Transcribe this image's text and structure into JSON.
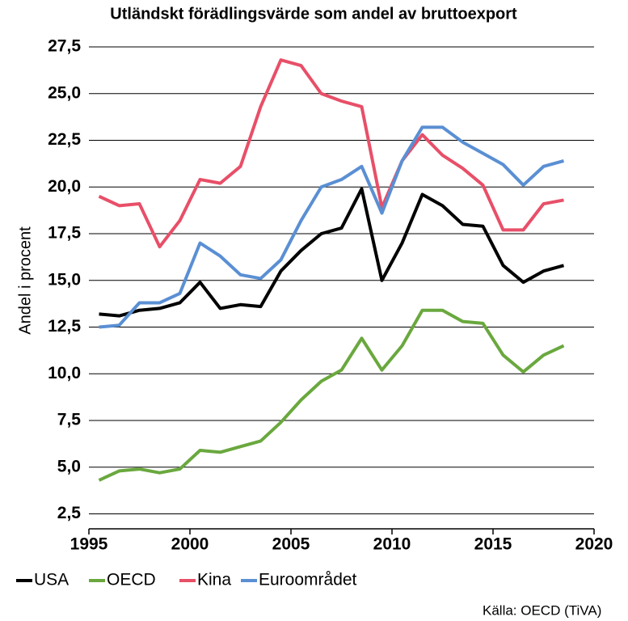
{
  "chart_data": {
    "type": "line",
    "title": "Utländskt förädlingsvärde som andel av bruttoexport",
    "y_label": "Andel i procent",
    "source": "Källa: OECD (TiVA)",
    "x": [
      1995.5,
      1996.5,
      1997.5,
      1998.5,
      1999.5,
      2000.5,
      2001.5,
      2002.5,
      2003.5,
      2004.5,
      2005.5,
      2006.5,
      2007.5,
      2008.5,
      2009.5,
      2010.5,
      2011.5,
      2012.5,
      2013.5,
      2014.5,
      2015.5,
      2016.5,
      2017.5,
      2018.5
    ],
    "series": [
      {
        "name": "USA",
        "color": "#000000",
        "values": [
          13.2,
          13.1,
          13.4,
          13.5,
          13.8,
          14.9,
          13.5,
          13.7,
          13.6,
          15.5,
          16.6,
          17.5,
          17.8,
          19.9,
          15.0,
          17.0,
          19.6,
          19.0,
          18.0,
          17.9,
          15.8,
          14.9,
          15.5,
          15.8
        ]
      },
      {
        "name": "OECD",
        "color": "#6aa83e",
        "values": [
          4.3,
          4.8,
          4.9,
          4.7,
          4.9,
          5.9,
          5.8,
          6.1,
          6.4,
          7.4,
          8.6,
          9.6,
          10.2,
          11.9,
          10.2,
          11.5,
          13.4,
          13.4,
          12.8,
          12.7,
          11.0,
          10.1,
          11.0,
          11.5
        ]
      },
      {
        "name": "Kina",
        "color": "#e84f68",
        "values": [
          19.5,
          19.0,
          19.1,
          16.8,
          18.2,
          20.4,
          20.2,
          21.1,
          24.3,
          26.8,
          26.5,
          25.0,
          24.6,
          24.3,
          18.9,
          21.4,
          22.8,
          21.7,
          21.0,
          20.1,
          17.7,
          17.7,
          19.1,
          19.3
        ]
      },
      {
        "name": "Euroområdet",
        "color": "#5a8fd3",
        "values": [
          12.5,
          12.6,
          13.8,
          13.8,
          14.3,
          17.0,
          16.3,
          15.3,
          15.1,
          16.1,
          18.2,
          20.0,
          20.4,
          21.1,
          18.6,
          21.4,
          23.2,
          23.2,
          22.4,
          21.8,
          21.2,
          20.1,
          21.1,
          21.4
        ]
      }
    ],
    "xlim": [
      1995,
      2020
    ],
    "xticks": [
      1995,
      2000,
      2005,
      2010,
      2015,
      2020
    ],
    "ylim": [
      1.7,
      27.5
    ],
    "yticks": [
      {
        "value": 2.5,
        "label": "2,5"
      },
      {
        "value": 5,
        "label": "5,0"
      },
      {
        "value": 7.5,
        "label": "7,5"
      },
      {
        "value": 10,
        "label": "10,0"
      },
      {
        "value": 12.5,
        "label": "12,5"
      },
      {
        "value": 15,
        "label": "15,0"
      },
      {
        "value": 17.5,
        "label": "17,5"
      },
      {
        "value": 20,
        "label": "20,0"
      },
      {
        "value": 22.5,
        "label": "22,5"
      },
      {
        "value": 25,
        "label": "25,0"
      },
      {
        "value": 27.5,
        "label": "27,5"
      }
    ],
    "grid": true
  }
}
